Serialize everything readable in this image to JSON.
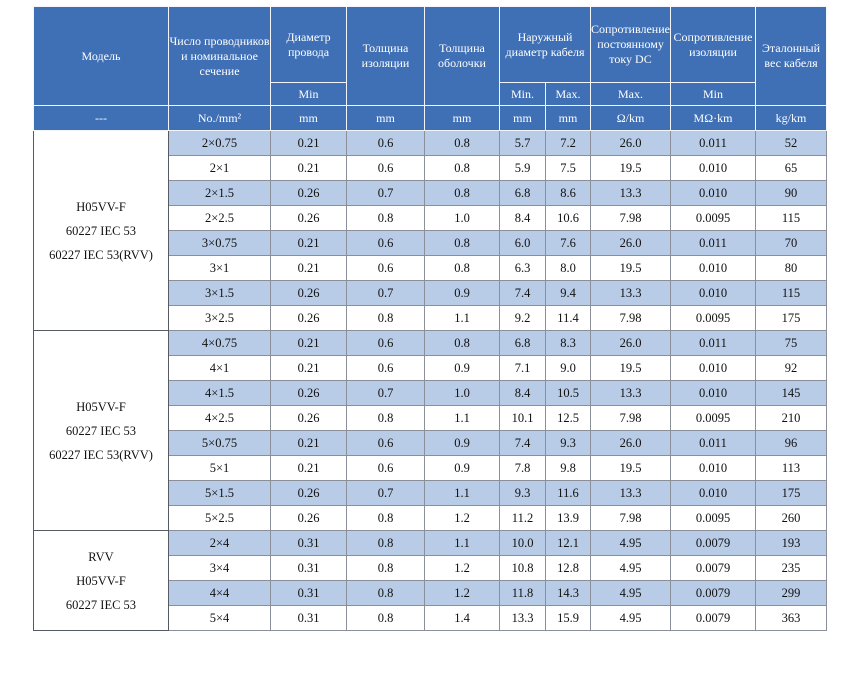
{
  "header": {
    "model": "Модель",
    "cores": "Число проводников и номинальное сечение",
    "wire_dia": "Диаметр провода",
    "insul_thk": "Толщина изоляции",
    "sheath_thk": "Толщина оболочки",
    "outer_dia": "Наружный диаметр кабеля",
    "dc_res": "Сопротивление постоянному току DC",
    "insul_res": "Сопротивление изоляции",
    "weight": "Эталонный вес кабеля"
  },
  "subheader": {
    "wire_dia": "Min",
    "outer_min": "Min.",
    "outer_max": "Max.",
    "dc_res": "Max.",
    "insul_res": "Min"
  },
  "units": {
    "model": "---",
    "cores": "No./mm²",
    "wire_dia": "mm",
    "insul_thk": "mm",
    "sheath_thk": "mm",
    "outer_min": "mm",
    "outer_max": "mm",
    "dc_res": "Ω/km",
    "insul_res": "MΩ·km",
    "weight": "kg/km"
  },
  "groups": [
    {
      "models": [
        "H05VV-F",
        "60227 IEC 53",
        "60227 IEC 53(RVV)"
      ],
      "rows": [
        [
          "2×0.75",
          "0.21",
          "0.6",
          "0.8",
          "5.7",
          "7.2",
          "26.0",
          "0.011",
          "52"
        ],
        [
          "2×1",
          "0.21",
          "0.6",
          "0.8",
          "5.9",
          "7.5",
          "19.5",
          "0.010",
          "65"
        ],
        [
          "2×1.5",
          "0.26",
          "0.7",
          "0.8",
          "6.8",
          "8.6",
          "13.3",
          "0.010",
          "90"
        ],
        [
          "2×2.5",
          "0.26",
          "0.8",
          "1.0",
          "8.4",
          "10.6",
          "7.98",
          "0.0095",
          "115"
        ],
        [
          "3×0.75",
          "0.21",
          "0.6",
          "0.8",
          "6.0",
          "7.6",
          "26.0",
          "0.011",
          "70"
        ],
        [
          "3×1",
          "0.21",
          "0.6",
          "0.8",
          "6.3",
          "8.0",
          "19.5",
          "0.010",
          "80"
        ],
        [
          "3×1.5",
          "0.26",
          "0.7",
          "0.9",
          "7.4",
          "9.4",
          "13.3",
          "0.010",
          "115"
        ],
        [
          "3×2.5",
          "0.26",
          "0.8",
          "1.1",
          "9.2",
          "11.4",
          "7.98",
          "0.0095",
          "175"
        ]
      ]
    },
    {
      "models": [
        "H05VV-F",
        "60227 IEC 53",
        "60227 IEC 53(RVV)"
      ],
      "rows": [
        [
          "4×0.75",
          "0.21",
          "0.6",
          "0.8",
          "6.8",
          "8.3",
          "26.0",
          "0.011",
          "75"
        ],
        [
          "4×1",
          "0.21",
          "0.6",
          "0.9",
          "7.1",
          "9.0",
          "19.5",
          "0.010",
          "92"
        ],
        [
          "4×1.5",
          "0.26",
          "0.7",
          "1.0",
          "8.4",
          "10.5",
          "13.3",
          "0.010",
          "145"
        ],
        [
          "4×2.5",
          "0.26",
          "0.8",
          "1.1",
          "10.1",
          "12.5",
          "7.98",
          "0.0095",
          "210"
        ],
        [
          "5×0.75",
          "0.21",
          "0.6",
          "0.9",
          "7.4",
          "9.3",
          "26.0",
          "0.011",
          "96"
        ],
        [
          "5×1",
          "0.21",
          "0.6",
          "0.9",
          "7.8",
          "9.8",
          "19.5",
          "0.010",
          "113"
        ],
        [
          "5×1.5",
          "0.26",
          "0.7",
          "1.1",
          "9.3",
          "11.6",
          "13.3",
          "0.010",
          "175"
        ],
        [
          "5×2.5",
          "0.26",
          "0.8",
          "1.2",
          "11.2",
          "13.9",
          "7.98",
          "0.0095",
          "260"
        ]
      ]
    },
    {
      "models": [
        "RVV",
        "H05VV-F",
        "60227 IEC 53"
      ],
      "rows": [
        [
          "2×4",
          "0.31",
          "0.8",
          "1.1",
          "10.0",
          "12.1",
          "4.95",
          "0.0079",
          "193"
        ],
        [
          "3×4",
          "0.31",
          "0.8",
          "1.2",
          "10.8",
          "12.8",
          "4.95",
          "0.0079",
          "235"
        ],
        [
          "4×4",
          "0.31",
          "0.8",
          "1.2",
          "11.8",
          "14.3",
          "4.95",
          "0.0079",
          "299"
        ],
        [
          "5×4",
          "0.31",
          "0.8",
          "1.4",
          "13.3",
          "15.9",
          "4.95",
          "0.0079",
          "363"
        ]
      ]
    }
  ],
  "colors": {
    "header_bg": "#3f6fb5",
    "row_shade": "#b9cce7"
  }
}
